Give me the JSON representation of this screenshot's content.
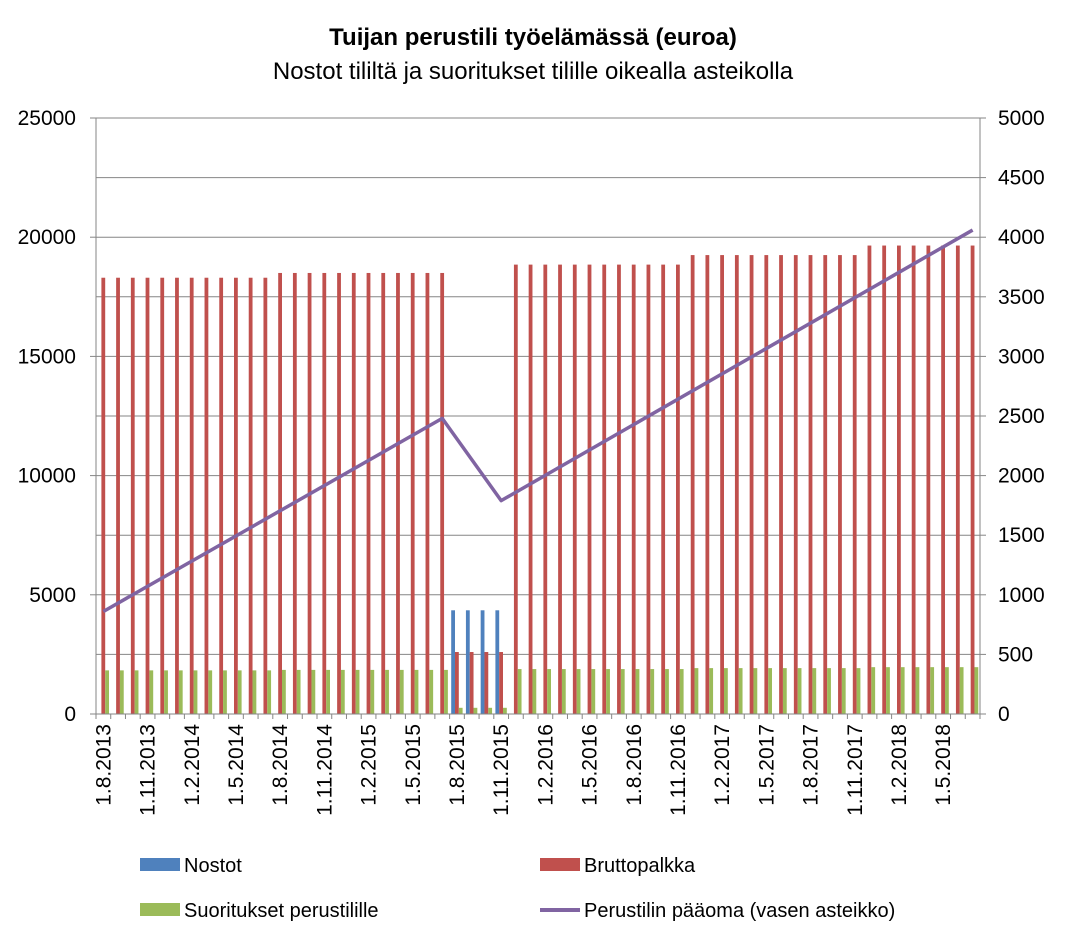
{
  "chart_data": {
    "type": "bar",
    "title": "Tuijan perustili työelämässä (euroa)",
    "subtitle": "Nostot tililtä ja suoritukset tilille oikealla asteikolla",
    "y_left": {
      "min": 0,
      "max": 25000,
      "ticks": [
        0,
        5000,
        10000,
        15000,
        20000,
        25000
      ]
    },
    "y_right": {
      "min": 0,
      "max": 5000,
      "ticks": [
        0,
        500,
        1000,
        1500,
        2000,
        2500,
        3000,
        3500,
        4000,
        4500,
        5000
      ]
    },
    "x_tick_labels": [
      "1.8.2013",
      "1.11.2013",
      "1.2.2014",
      "1.5.2014",
      "1.8.2014",
      "1.11.2014",
      "1.2.2015",
      "1.5.2015",
      "1.8.2015",
      "1.11.2015",
      "1.2.2016",
      "1.5.2016",
      "1.8.2016",
      "1.11.2016",
      "1.2.2017",
      "1.5.2017",
      "1.8.2017",
      "1.11.2017",
      "1.2.2018",
      "1.5.2018"
    ],
    "grid": "horizontal",
    "legend_position": "bottom",
    "series": [
      {
        "name": "Nostot",
        "axis": "right",
        "kind": "bar",
        "color": "#4F81BD",
        "values": [
          0,
          0,
          0,
          0,
          0,
          0,
          0,
          0,
          0,
          0,
          0,
          0,
          0,
          0,
          0,
          0,
          0,
          0,
          0,
          0,
          0,
          0,
          0,
          0,
          870,
          870,
          870,
          870,
          0,
          0,
          0,
          0,
          0,
          0,
          0,
          0,
          0,
          0,
          0,
          0,
          0,
          0,
          0,
          0,
          0,
          0,
          0,
          0,
          0,
          0,
          0,
          0,
          0,
          0,
          0,
          0,
          0,
          0,
          0,
          0
        ]
      },
      {
        "name": "Bruttopalkka",
        "axis": "right",
        "kind": "bar",
        "color": "#C0504D",
        "values": [
          3660,
          3660,
          3660,
          3660,
          3660,
          3660,
          3660,
          3660,
          3660,
          3660,
          3660,
          3660,
          3700,
          3700,
          3700,
          3700,
          3700,
          3700,
          3700,
          3700,
          3700,
          3700,
          3700,
          3700,
          520,
          520,
          520,
          520,
          3770,
          3770,
          3770,
          3770,
          3770,
          3770,
          3770,
          3770,
          3770,
          3770,
          3770,
          3770,
          3850,
          3850,
          3850,
          3850,
          3850,
          3850,
          3850,
          3850,
          3850,
          3850,
          3850,
          3850,
          3930,
          3930,
          3930,
          3930,
          3930,
          3930,
          3930,
          3930
        ]
      },
      {
        "name": "Suoritukset perustilille",
        "axis": "right",
        "kind": "bar",
        "color": "#9BBB59",
        "values": [
          366,
          366,
          366,
          366,
          366,
          366,
          366,
          366,
          366,
          366,
          366,
          366,
          370,
          370,
          370,
          370,
          370,
          370,
          370,
          370,
          370,
          370,
          370,
          370,
          52,
          52,
          52,
          52,
          377,
          377,
          377,
          377,
          377,
          377,
          377,
          377,
          377,
          377,
          377,
          377,
          385,
          385,
          385,
          385,
          385,
          385,
          385,
          385,
          385,
          385,
          385,
          385,
          393,
          393,
          393,
          393,
          393,
          393,
          393,
          393
        ]
      },
      {
        "name": "Perustilin pääoma (vasen asteikko)",
        "axis": "left",
        "kind": "line",
        "color": "#8064A2",
        "points": [
          [
            0,
            4300
          ],
          [
            23,
            12400
          ],
          [
            27,
            8950
          ],
          [
            59,
            20300
          ]
        ]
      }
    ]
  }
}
